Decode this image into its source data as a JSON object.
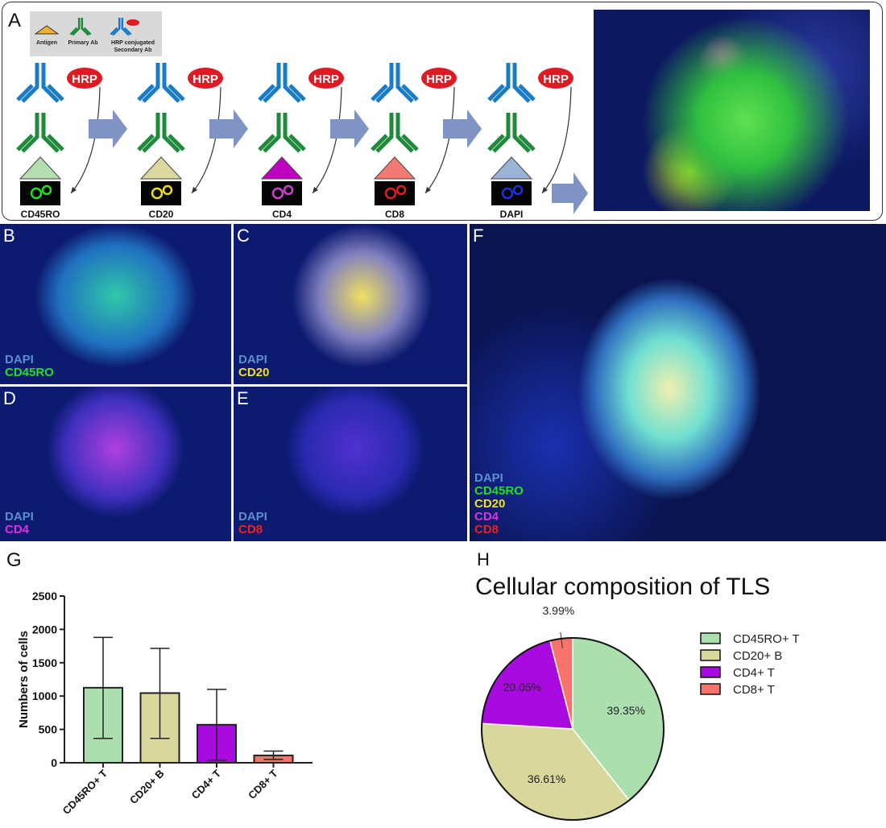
{
  "panels": {
    "A": "A",
    "B": "B",
    "C": "C",
    "D": "D",
    "E": "E",
    "F": "F",
    "G": "G",
    "H": "H"
  },
  "legend_box": {
    "antigen": "Antigen",
    "primary": "Primary Ab",
    "secondary_1": "HRP conjugated",
    "secondary_2": "Secondary Ab",
    "hrp": "HRP"
  },
  "steps": [
    {
      "label": "CD45RO",
      "antigen_color": "#b3dfb0",
      "signal_color": "#22e022"
    },
    {
      "label": "CD20",
      "antigen_color": "#dcd79e",
      "signal_color": "#e8e020"
    },
    {
      "label": "CD4",
      "antigen_color": "#c000c0",
      "signal_color": "#d040d0"
    },
    {
      "label": "CD8",
      "antigen_color": "#f27a72",
      "signal_color": "#e02020"
    },
    {
      "label": "DAPI",
      "antigen_color": "#9bb3d6",
      "signal_color": "#2030e0"
    }
  ],
  "hrp_label": "HRP",
  "colors": {
    "secondary_ab": "#1a7cc6",
    "primary_ab": "#1f8a3a",
    "hrp": "#e01a22",
    "arrow": "#7f93c4",
    "antigen_legend": "#f0b030"
  },
  "micro": {
    "B": [
      {
        "t": "DAPI",
        "c": "#5b8fd0"
      },
      {
        "t": "CD45RO",
        "c": "#22e022"
      }
    ],
    "C": [
      {
        "t": "DAPI",
        "c": "#5b8fd0"
      },
      {
        "t": "CD20",
        "c": "#f0e020"
      }
    ],
    "D": [
      {
        "t": "DAPI",
        "c": "#5b8fd0"
      },
      {
        "t": "CD4",
        "c": "#e030e0"
      }
    ],
    "E": [
      {
        "t": "DAPI",
        "c": "#5b8fd0"
      },
      {
        "t": "CD8",
        "c": "#ee2020"
      }
    ],
    "F": [
      {
        "t": "DAPI",
        "c": "#5b8fd0"
      },
      {
        "t": "CD45RO",
        "c": "#22e022"
      },
      {
        "t": "CD20",
        "c": "#f0e020"
      },
      {
        "t": "CD4",
        "c": "#e030e0"
      },
      {
        "t": "CD8",
        "c": "#ee2020"
      }
    ]
  },
  "chart_data": [
    {
      "type": "bar",
      "title": "",
      "xlabel": "",
      "ylabel": "Numbers of cells",
      "ylim": [
        0,
        2500
      ],
      "yticks": [
        0,
        500,
        1000,
        1500,
        2000,
        2500
      ],
      "categories": [
        "CD45RO+ T",
        "CD20+ B",
        "CD4+ T",
        "CD8+ T"
      ],
      "values": [
        1125,
        1045,
        570,
        110
      ],
      "error_low": [
        365,
        365,
        40,
        50
      ],
      "error_high": [
        1880,
        1715,
        1100,
        175
      ],
      "colors": [
        "#abdfae",
        "#d8d79c",
        "#a80ae0",
        "#f7736c"
      ]
    },
    {
      "type": "pie",
      "title": "Cellular composition of TLS",
      "categories": [
        "CD45RO+ T",
        "CD20+ B",
        "CD4+ T",
        "CD8+ T"
      ],
      "values": [
        39.35,
        36.61,
        20.05,
        3.99
      ],
      "labels": [
        "39.35%",
        "36.61%",
        "20.05%",
        "3.99%"
      ],
      "colors": [
        "#abdfae",
        "#d8d79c",
        "#a80ae0",
        "#f7736c"
      ],
      "legend_position": "right"
    }
  ]
}
